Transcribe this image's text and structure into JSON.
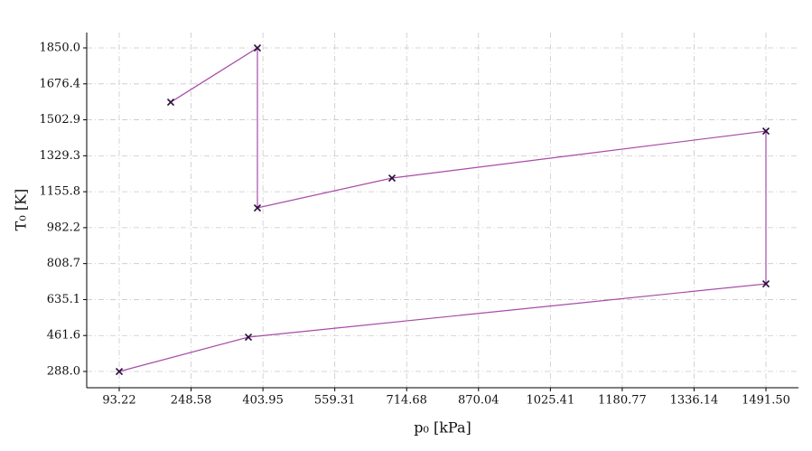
{
  "chart_data": {
    "type": "line",
    "xlabel": "p₀ [kPa]",
    "ylabel": "T₀ [K]",
    "x": [
      93.22,
      372.5,
      1491.5,
      1491.5,
      683,
      392,
      392,
      204.5
    ],
    "values": [
      288.0,
      453.8,
      711,
      1448.6,
      1221.7,
      1077.7,
      1850.0,
      1588
    ],
    "color": "#a64ca6",
    "marker_color": "#2a0a3a",
    "xlim": [
      22.9,
      1561.8
    ],
    "ylim": [
      209.5,
      1924.2
    ],
    "xticks": [
      93.22,
      248.58,
      403.95,
      559.31,
      714.68,
      870.04,
      1025.41,
      1180.77,
      1336.14,
      {
        "value": 1491.5,
        "label": "1491.50"
      }
    ],
    "yticks": [
      {
        "value": 288,
        "label": "288.0"
      },
      461.6,
      635.1,
      808.7,
      982.2,
      1155.8,
      1329.3,
      1502.9,
      1676.4,
      {
        "value": 1850,
        "label": "1850.0"
      }
    ],
    "grid": true
  }
}
